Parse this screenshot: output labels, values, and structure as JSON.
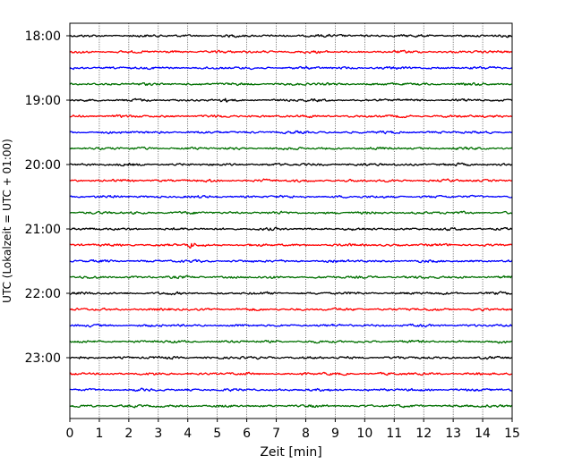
{
  "chart_data": {
    "type": "line",
    "title": "",
    "xlabel": "Zeit  [min]",
    "ylabel": "UTC (Lokalzeit = UTC + 01:00)",
    "xlim": [
      0,
      15
    ],
    "x_ticks": [
      "0",
      "1",
      "2",
      "3",
      "4",
      "5",
      "6",
      "7",
      "8",
      "9",
      "10",
      "11",
      "12",
      "13",
      "14",
      "15"
    ],
    "y_ticks": [
      "18:00",
      "19:00",
      "20:00",
      "21:00",
      "22:00",
      "23:00"
    ],
    "grid": "vertical dotted",
    "trace_minutes": 15,
    "trace_start_times": [
      "18:00",
      "18:15",
      "18:30",
      "18:45",
      "19:00",
      "19:15",
      "19:30",
      "19:45",
      "20:00",
      "20:15",
      "20:30",
      "20:45",
      "21:00",
      "21:15",
      "21:30",
      "21:45",
      "22:00",
      "22:15",
      "22:30",
      "22:45",
      "23:00",
      "23:15",
      "23:30",
      "23:45"
    ],
    "trace_color_cycle": [
      "#000000",
      "#ff0000",
      "#0000ff",
      "#007000"
    ],
    "events": [
      {
        "start": "21:15",
        "minute": 4.1,
        "relative_amplitude": 3.5
      },
      {
        "start": "18:00",
        "minute": 9.3,
        "relative_amplitude": 1.6
      },
      {
        "start": "19:00",
        "minute": 5.3,
        "relative_amplitude": 1.6
      },
      {
        "start": "20:15",
        "minute": 6.6,
        "relative_amplitude": 1.5
      }
    ]
  }
}
